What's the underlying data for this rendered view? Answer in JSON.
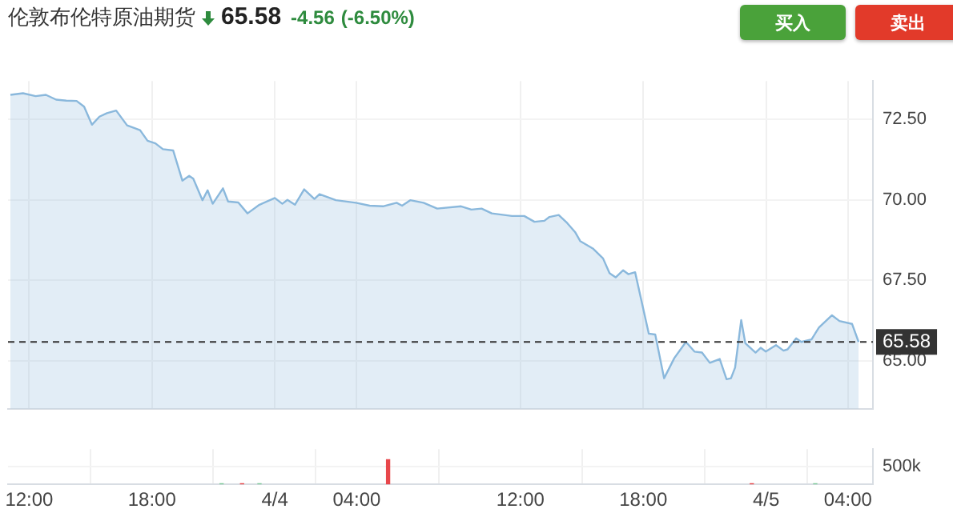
{
  "chart_data": [
    {
      "type": "area",
      "title": "伦敦布伦特原油期货",
      "annotations": [
        "65.58",
        "-4.56",
        "(-6.50%)",
        "买入",
        "卖出"
      ],
      "series": [
        {
          "color": "#8ab8dc",
          "x": [
            "--04-03T11:05",
            "--04-03T11:42",
            "--04-03T12:19",
            "--04-03T12:49",
            "--04-03T13:19",
            "--04-03T13:49",
            "--04-03T14:19",
            "--04-03T14:41",
            "--04-03T15:04",
            "--04-03T15:26",
            "--04-03T15:48",
            "--04-03T16:15",
            "--04-03T16:47",
            "--04-03T17:25",
            "--04-03T17:47",
            "--04-03T18:10",
            "--04-03T18:32",
            "--04-03T19:02",
            "--04-03T19:29",
            "--04-03T19:49",
            "--04-03T20:01",
            "--04-03T20:28",
            "--04-03T20:43",
            "--04-03T20:58",
            "--04-03T21:28",
            "--04-03T21:43",
            "--04-03T22:13",
            "--04-03T22:40",
            "--04-03T23:15",
            "--04-04T00:00",
            "--04-04T00:22",
            "--04-04T00:37",
            "--04-04T00:59",
            "--04-04T01:26",
            "--04-04T01:56",
            "--04-04T02:11",
            "--04-04T02:59",
            "--04-04T03:58",
            "--04-04T04:38",
            "--04-04T05:17",
            "--04-04T05:57",
            "--04-04T06:13",
            "--04-04T06:37",
            "--04-04T07:16",
            "--04-04T07:56",
            "--04-04T09:06",
            "--04-04T09:36",
            "--04-04T10:06",
            "--04-04T10:36",
            "--04-04T11:35",
            "--04-04T12:11",
            "--04-04T12:41",
            "--04-04T13:10",
            "--04-04T13:25",
            "--04-04T13:52",
            "--04-04T14:17",
            "--04-04T14:40",
            "--04-04T14:55",
            "--04-04T15:32",
            "--04-04T16:02",
            "--04-04T16:21",
            "--04-04T16:39",
            "--04-04T17:01",
            "--04-04T17:16",
            "--04-04T17:36",
            "--04-04T17:53",
            "--04-04T18:16",
            "--04-04T18:35",
            "--04-04T19:01",
            "--04-04T19:31",
            "--04-04T20:05",
            "--04-04T20:30",
            "--04-04T20:52",
            "--04-04T21:15",
            "--04-04T21:44",
            "--04-04T22:04",
            "--04-04T22:17",
            "--04-04T22:29",
            "--04-04T22:47",
            "--04-04T22:59",
            "--04-04T23:29",
            "--04-04T23:44",
            "--04-04T23:59",
            "--04-05T00:29",
            "--04-05T00:51",
            "--04-05T01:03",
            "--04-05T01:28",
            "--04-05T01:43",
            "--04-05T02:13",
            "--04-05T02:35",
            "--04-05T03:13",
            "--04-05T03:35",
            "--04-05T04:12",
            "--04-05T04:31"
          ],
          "values": [
            73.27,
            73.32,
            73.23,
            73.27,
            73.12,
            73.09,
            73.08,
            72.9,
            72.34,
            72.59,
            72.7,
            72.78,
            72.32,
            72.17,
            71.84,
            71.76,
            71.58,
            71.54,
            70.6,
            70.75,
            70.66,
            69.99,
            70.3,
            69.88,
            70.36,
            69.95,
            69.92,
            69.58,
            69.85,
            70.06,
            69.88,
            70.0,
            69.85,
            70.33,
            70.03,
            70.18,
            69.99,
            69.91,
            69.82,
            69.8,
            69.91,
            69.82,
            69.99,
            69.91,
            69.73,
            69.8,
            69.7,
            69.73,
            69.58,
            69.5,
            69.5,
            69.32,
            69.35,
            69.47,
            69.53,
            69.28,
            69.0,
            68.72,
            68.49,
            68.18,
            67.72,
            67.59,
            67.81,
            67.69,
            67.75,
            66.94,
            65.84,
            65.81,
            64.45,
            65.08,
            65.58,
            65.28,
            65.25,
            64.93,
            65.05,
            64.42,
            64.45,
            64.78,
            66.26,
            65.54,
            65.25,
            65.4,
            65.28,
            65.48,
            65.31,
            65.35,
            65.69,
            65.58,
            65.66,
            66.03,
            66.41,
            66.23,
            66.14,
            65.58
          ]
        }
      ],
      "xlim": [
        "--04-03T10:58",
        "--04-05T05:13"
      ],
      "ylim": [
        63.5,
        73.7
      ],
      "yticks": [
        {
          "value": 65,
          "label": "65.00"
        },
        {
          "value": 67.5,
          "label": "67.50"
        },
        {
          "value": 70,
          "label": "70.00"
        },
        {
          "value": 72.5,
          "label": "72.50"
        }
      ],
      "xticks": [
        {
          "value": "--04-03T12:00",
          "label": null
        },
        {
          "value": "--04-03T18:00",
          "label": null
        },
        {
          "value": "--04-04T00:00",
          "label": null
        },
        {
          "value": "--04-04T04:00",
          "label": null
        },
        {
          "value": "--04-04T12:00",
          "label": null
        },
        {
          "value": "--04-04T18:00",
          "label": null
        },
        {
          "value": "--04-05T00:00",
          "label": null
        },
        {
          "value": "--04-05T04:00",
          "label": null
        }
      ],
      "tick_labels": "y",
      "grid": true,
      "legend": false,
      "marker": "none",
      "ref_lines": [
        {
          "axis": "y",
          "value": 65.58,
          "label": "65.58",
          "color": "#333333",
          "line_style": "dashed"
        }
      ]
    },
    {
      "type": "bar",
      "x": [
        "--04-03T21:24",
        "--04-03T22:24",
        "--04-03T23:15",
        "--04-04T05:32",
        "--04-04T23:18",
        "--04-05T02:24"
      ],
      "values": [
        20000,
        20000,
        20000,
        700000,
        20000,
        20000
      ],
      "colors": [
        "#7fc99a",
        "#e8474b",
        "#7fc99a",
        "#e8474b",
        "#e8474b",
        "#7fc99a"
      ],
      "xlim": [
        "--04-03T10:58",
        "--04-05T05:13"
      ],
      "ylim": [
        0,
        1000000
      ],
      "yticks": [
        {
          "value": 500000,
          "label": "500k"
        }
      ],
      "xticks": [
        {
          "value": "--04-03T12:00",
          "label": "12:00"
        },
        {
          "value": "--04-03T18:00",
          "label": "18:00"
        },
        {
          "value": "--04-04T00:00",
          "label": "4/4"
        },
        {
          "value": "--04-04T04:00",
          "label": "04:00"
        },
        {
          "value": "--04-04T12:00",
          "label": "12:00"
        },
        {
          "value": "--04-04T18:00",
          "label": "18:00"
        },
        {
          "value": "--04-05T00:00",
          "label": "4/5"
        },
        {
          "value": "--04-05T04:00",
          "label": "04:00"
        }
      ],
      "grid": true,
      "legend": false
    }
  ]
}
